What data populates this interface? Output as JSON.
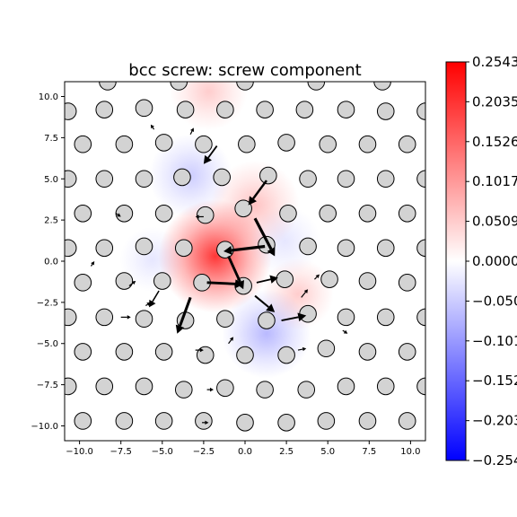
{
  "chart_data": {
    "type": "heatmap",
    "title": "bcc screw: screw component",
    "xlim": [
      -10.9,
      10.9
    ],
    "ylim": [
      -10.9,
      10.9
    ],
    "x_ticks": [
      -10.0,
      -7.5,
      -5.0,
      -2.5,
      0.0,
      2.5,
      5.0,
      7.5,
      10.0
    ],
    "y_ticks": [
      -10.0,
      -7.5,
      -5.0,
      -2.5,
      0.0,
      2.5,
      5.0,
      7.5,
      10.0
    ],
    "x_tick_labels": [
      "−10.0",
      "−7.5",
      "−5.0",
      "−2.5",
      "0.0",
      "2.5",
      "5.0",
      "7.5",
      "10.0"
    ],
    "y_tick_labels": [
      "−10.0",
      "−7.5",
      "−5.0",
      "−2.5",
      "0.0",
      "2.5",
      "5.0",
      "7.5",
      "10.0"
    ],
    "colorbar": {
      "colormap": "bwr",
      "min": -0.2543,
      "max": 0.2543,
      "ticks": [
        0.2543,
        0.2035,
        0.1526,
        0.1017,
        0.0509,
        0.0,
        -0.0509,
        -0.1017,
        -0.1526,
        -0.2035,
        -0.2543
      ],
      "tick_labels": [
        "0.2543",
        "0.2035",
        "0.1526",
        "0.1017",
        "0.0509",
        "0.0000",
        "−0.0509",
        "−0.1017",
        "−0.1526",
        "−0.2035",
        "−0.2543"
      ],
      "colors": {
        "low": "#0000ff",
        "mid": "#ffffff",
        "high": "#ff0000"
      }
    },
    "heat_blobs": [
      {
        "x": -1.8,
        "y": 0.3,
        "value": 0.2,
        "spread": 1.9
      },
      {
        "x": 0.6,
        "y": 3.4,
        "value": 0.06,
        "spread": 1.5
      },
      {
        "x": -2.2,
        "y": 10.3,
        "value": 0.05,
        "spread": 1.3
      },
      {
        "x": 3.2,
        "y": -2.0,
        "value": 0.05,
        "spread": 1.2
      },
      {
        "x": 1.3,
        "y": -4.4,
        "value": -0.07,
        "spread": 1.5
      },
      {
        "x": -3.3,
        "y": 5.2,
        "value": -0.05,
        "spread": 1.4
      },
      {
        "x": 2.4,
        "y": 1.2,
        "value": -0.025,
        "spread": 1.2
      },
      {
        "x": -5.6,
        "y": 0.1,
        "value": -0.025,
        "spread": 1.1
      }
    ],
    "atoms": [
      [
        -8.3,
        10.9
      ],
      [
        -4.0,
        10.9
      ],
      [
        0.0,
        10.9
      ],
      [
        4.3,
        10.9
      ],
      [
        8.3,
        10.9
      ],
      [
        -10.7,
        9.1
      ],
      [
        -8.5,
        9.2
      ],
      [
        -6.1,
        9.3
      ],
      [
        -3.6,
        9.2
      ],
      [
        -1.2,
        9.2
      ],
      [
        1.2,
        9.2
      ],
      [
        3.6,
        9.2
      ],
      [
        6.1,
        9.2
      ],
      [
        8.5,
        9.1
      ],
      [
        10.9,
        9.1
      ],
      [
        -9.8,
        7.1
      ],
      [
        -7.3,
        7.1
      ],
      [
        -4.9,
        7.2
      ],
      [
        -2.5,
        7.1
      ],
      [
        0.1,
        7.1
      ],
      [
        2.5,
        7.2
      ],
      [
        5.0,
        7.1
      ],
      [
        7.4,
        7.1
      ],
      [
        9.8,
        7.1
      ],
      [
        -10.7,
        5.0
      ],
      [
        -8.5,
        5.0
      ],
      [
        -6.1,
        5.0
      ],
      [
        -3.8,
        5.1
      ],
      [
        -1.4,
        5.1
      ],
      [
        1.4,
        5.2
      ],
      [
        3.8,
        5.0
      ],
      [
        6.1,
        5.0
      ],
      [
        8.5,
        5.0
      ],
      [
        10.9,
        5.0
      ],
      [
        -9.8,
        2.9
      ],
      [
        -7.3,
        2.9
      ],
      [
        -4.9,
        2.9
      ],
      [
        -2.4,
        2.8
      ],
      [
        -0.1,
        3.2
      ],
      [
        2.6,
        2.9
      ],
      [
        5.0,
        2.9
      ],
      [
        7.4,
        2.9
      ],
      [
        9.8,
        2.9
      ],
      [
        -10.7,
        0.8
      ],
      [
        -8.5,
        0.8
      ],
      [
        -6.1,
        0.9
      ],
      [
        -3.7,
        0.8
      ],
      [
        -1.2,
        0.7
      ],
      [
        1.3,
        1.0
      ],
      [
        3.8,
        0.9
      ],
      [
        6.1,
        0.8
      ],
      [
        8.5,
        0.8
      ],
      [
        10.9,
        0.8
      ],
      [
        -9.8,
        -1.3
      ],
      [
        -7.3,
        -1.2
      ],
      [
        -5.0,
        -1.2
      ],
      [
        -2.6,
        -1.3
      ],
      [
        -0.1,
        -1.5
      ],
      [
        2.4,
        -1.1
      ],
      [
        5.1,
        -1.1
      ],
      [
        7.4,
        -1.2
      ],
      [
        9.8,
        -1.3
      ],
      [
        -10.7,
        -3.4
      ],
      [
        -8.5,
        -3.4
      ],
      [
        -6.1,
        -3.5
      ],
      [
        -3.6,
        -3.6
      ],
      [
        -1.2,
        -3.5
      ],
      [
        1.3,
        -3.6
      ],
      [
        3.8,
        -3.2
      ],
      [
        6.1,
        -3.4
      ],
      [
        8.5,
        -3.4
      ],
      [
        10.9,
        -3.4
      ],
      [
        -9.8,
        -5.5
      ],
      [
        -7.3,
        -5.5
      ],
      [
        -4.9,
        -5.5
      ],
      [
        -2.4,
        -5.7
      ],
      [
        0.0,
        -5.7
      ],
      [
        2.5,
        -5.7
      ],
      [
        4.9,
        -5.3
      ],
      [
        7.4,
        -5.5
      ],
      [
        9.8,
        -5.5
      ],
      [
        -10.7,
        -7.6
      ],
      [
        -8.5,
        -7.6
      ],
      [
        -6.1,
        -7.6
      ],
      [
        -3.7,
        -7.8
      ],
      [
        -1.2,
        -7.7
      ],
      [
        1.2,
        -7.8
      ],
      [
        3.7,
        -7.8
      ],
      [
        6.1,
        -7.6
      ],
      [
        8.5,
        -7.6
      ],
      [
        10.9,
        -7.6
      ],
      [
        -9.8,
        -9.7
      ],
      [
        -7.3,
        -9.7
      ],
      [
        -4.9,
        -9.7
      ],
      [
        -2.5,
        -9.7
      ],
      [
        0.0,
        -9.8
      ],
      [
        2.5,
        -9.8
      ],
      [
        4.9,
        -9.7
      ],
      [
        7.4,
        -9.7
      ],
      [
        9.8,
        -9.7
      ]
    ],
    "arrows": [
      [
        -1.7,
        7.0,
        -0.8,
        -1.1
      ],
      [
        1.3,
        4.9,
        -1.1,
        -1.5
      ],
      [
        0.6,
        2.6,
        1.2,
        -2.3
      ],
      [
        1.2,
        0.9,
        -2.5,
        -0.3
      ],
      [
        -1.0,
        0.3,
        0.9,
        -2.0
      ],
      [
        -2.3,
        -1.3,
        2.2,
        -0.1
      ],
      [
        0.7,
        -1.3,
        1.3,
        0.3
      ],
      [
        0.6,
        -2.1,
        1.2,
        -1.0
      ],
      [
        2.2,
        -3.6,
        1.5,
        0.3
      ],
      [
        -3.3,
        -2.2,
        -0.8,
        -2.2
      ],
      [
        -5.2,
        -1.8,
        -0.6,
        -1.0
      ],
      [
        -7.5,
        -3.4,
        0.6,
        0.0
      ],
      [
        -3.3,
        7.7,
        0.2,
        0.4
      ],
      [
        -2.5,
        2.7,
        -0.5,
        0.0
      ],
      [
        3.4,
        -2.2,
        0.4,
        0.5
      ],
      [
        -7.0,
        -1.5,
        0.4,
        0.3
      ],
      [
        -9.3,
        -0.3,
        0.2,
        0.3
      ],
      [
        -3.0,
        -5.4,
        0.5,
        0.0
      ],
      [
        3.2,
        -5.4,
        0.5,
        0.1
      ],
      [
        -5.5,
        8.0,
        -0.2,
        0.3
      ],
      [
        -1.0,
        -5.0,
        0.3,
        0.4
      ],
      [
        4.2,
        -1.1,
        0.3,
        0.3
      ],
      [
        -7.8,
        2.9,
        0.3,
        -0.2
      ],
      [
        -6.0,
        -2.7,
        0.3,
        0.2
      ],
      [
        5.9,
        -4.2,
        0.3,
        -0.2
      ],
      [
        -2.3,
        -7.8,
        0.4,
        0.0
      ],
      [
        -2.6,
        -9.8,
        0.4,
        0.0
      ]
    ]
  }
}
